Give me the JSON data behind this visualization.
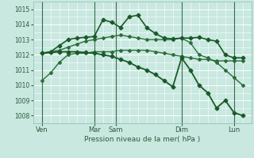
{
  "xlabel": "Pression niveau de la mer( hPa )",
  "bg_color": "#c8e8e0",
  "grid_color": "#ffffff",
  "ylim": [
    1007.5,
    1015.5
  ],
  "yticks": [
    1008,
    1009,
    1010,
    1011,
    1012,
    1013,
    1014,
    1015
  ],
  "xlim": [
    0,
    25
  ],
  "xtick_labels": [
    "Ven",
    "Mar",
    "Sam",
    "Dim",
    "Lun"
  ],
  "xtick_positions": [
    1,
    7,
    9.5,
    17,
    23
  ],
  "vline_positions": [
    1,
    7,
    9.5,
    17,
    23
  ],
  "series": [
    {
      "x": [
        1,
        2,
        3,
        4,
        5,
        6,
        7,
        8,
        9,
        10,
        11,
        12,
        13,
        14,
        15,
        16,
        17,
        18,
        19,
        20,
        21,
        22,
        23,
        24
      ],
      "y": [
        1010.3,
        1010.8,
        1011.5,
        1012.0,
        1012.1,
        1012.1,
        1012.2,
        1012.2,
        1012.2,
        1012.3,
        1012.3,
        1012.3,
        1012.3,
        1012.2,
        1012.1,
        1012.0,
        1011.9,
        1011.8,
        1011.7,
        1011.7,
        1011.6,
        1011.6,
        1011.6,
        1011.6
      ],
      "color": "#2a6e3a",
      "lw": 1.0,
      "marker": "D",
      "ms": 2.0
    },
    {
      "x": [
        1,
        2,
        3,
        4,
        5,
        6,
        7,
        8,
        9,
        10,
        11,
        12,
        13,
        14,
        15,
        16,
        17,
        18,
        19,
        20,
        21,
        22,
        23,
        24
      ],
      "y": [
        1012.1,
        1012.2,
        1012.3,
        1012.5,
        1012.7,
        1012.9,
        1013.0,
        1013.1,
        1013.2,
        1013.3,
        1013.2,
        1013.1,
        1013.0,
        1013.0,
        1013.0,
        1013.0,
        1013.1,
        1012.8,
        1012.0,
        1011.8,
        1011.5,
        1011.0,
        1010.5,
        1010.0
      ],
      "color": "#2a6e3a",
      "lw": 1.0,
      "marker": "D",
      "ms": 2.0
    },
    {
      "x": [
        1,
        2,
        3,
        4,
        5,
        6,
        7,
        8,
        9,
        10,
        11,
        12,
        13,
        14,
        15,
        16,
        17,
        18,
        19,
        20,
        21,
        22,
        23,
        24
      ],
      "y": [
        1012.1,
        1012.2,
        1012.6,
        1013.0,
        1013.1,
        1013.15,
        1013.2,
        1014.3,
        1014.15,
        1013.8,
        1014.5,
        1014.6,
        1013.8,
        1013.4,
        1013.1,
        1013.05,
        1013.1,
        1013.1,
        1013.15,
        1013.0,
        1012.9,
        1012.0,
        1011.8,
        1011.8
      ],
      "color": "#1a5a28",
      "lw": 1.2,
      "marker": "D",
      "ms": 2.5
    },
    {
      "x": [
        1,
        2,
        3,
        4,
        5,
        6,
        7,
        8,
        9,
        10,
        11,
        12,
        13,
        14,
        15,
        16,
        17,
        18,
        19,
        20,
        21,
        22,
        23,
        24
      ],
      "y": [
        1012.1,
        1012.15,
        1012.2,
        1012.2,
        1012.2,
        1012.15,
        1012.1,
        1012.0,
        1011.9,
        1011.7,
        1011.5,
        1011.2,
        1011.0,
        1010.7,
        1010.3,
        1009.9,
        1011.8,
        1011.0,
        1010.0,
        1009.5,
        1008.5,
        1009.0,
        1008.2,
        1008.0
      ],
      "color": "#1a5a28",
      "lw": 1.3,
      "marker": "D",
      "ms": 2.5
    }
  ]
}
